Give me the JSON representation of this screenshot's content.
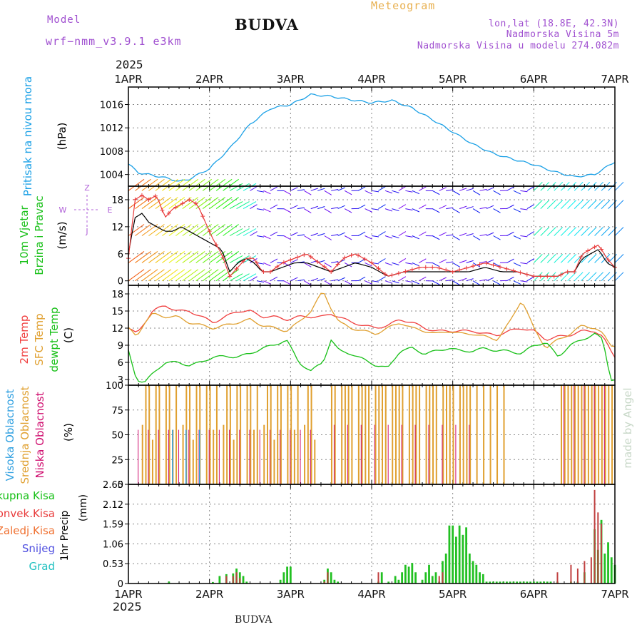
{
  "header": {
    "model_label": "Model",
    "model_name": "wrf−nmm_v3.9.1  e3km",
    "station": "BUDVA",
    "title": "Meteogram",
    "coords": "lon,lat (18.8E, 42.3N)",
    "elevation": "Nadmorska Visina 5m",
    "model_elevation": "Nadmorska Visina u modelu 274.082m",
    "year": "2025",
    "footer_station": "BUDVA",
    "watermark": "made by Angel"
  },
  "colors": {
    "pressure": "#1aa0e6",
    "wind_speed": "#e83a3a",
    "wind_gust": "#000000",
    "t2m": "#f04040",
    "sfc": "#e0a030",
    "dew": "#18c018",
    "cloud_high": "#30a0e0",
    "cloud_mid": "#e0a030",
    "cloud_low": "#d01070",
    "precip_total": "#22c022",
    "precip_conv": "#c04040",
    "grid": "#888888"
  },
  "chart_data": [
    {
      "id": "pressure",
      "type": "line",
      "ylabel_main": "Pritisak na nivou mora",
      "ylabel_unit": "(hPa)",
      "ylim": [
        1002,
        1019
      ],
      "yticks": [
        1004,
        1008,
        1012,
        1016
      ],
      "x_days": [
        0,
        0.125,
        0.25,
        0.5,
        0.625,
        0.75,
        1.0,
        1.25,
        1.5,
        1.75,
        2.0,
        2.25,
        2.5,
        2.75,
        3.0,
        3.25,
        3.5,
        3.75,
        4.0,
        4.25,
        4.5,
        4.75,
        5.0,
        5.25,
        5.5,
        5.75,
        6.0
      ],
      "values": [
        1005.8,
        1004.3,
        1004.0,
        1003.3,
        1002.8,
        1003.2,
        1005.0,
        1008.5,
        1012.6,
        1015.3,
        1016.0,
        1017.7,
        1017.4,
        1016.8,
        1016.3,
        1016.7,
        1015.4,
        1013.4,
        1011.3,
        1009.2,
        1007.6,
        1006.6,
        1005.7,
        1004.5,
        1003.6,
        1004.0,
        1006.2
      ]
    },
    {
      "id": "wind",
      "type": "line",
      "ylabel_main": "10m Vjetar",
      "ylabel_sub": "Brzina i Pravac",
      "ylabel_unit": "(m/s)",
      "compass": [
        "Z",
        "W",
        "E",
        "J"
      ],
      "ylim": [
        -1,
        21
      ],
      "yticks": [
        0,
        6,
        12,
        18
      ],
      "barb_rows": [
        0,
        4,
        10,
        16,
        20
      ],
      "x_days": [
        0,
        0.08,
        0.17,
        0.25,
        0.35,
        0.45,
        0.55,
        0.65,
        0.75,
        0.85,
        0.95,
        1.05,
        1.15,
        1.25,
        1.35,
        1.45,
        1.55,
        1.65,
        1.75,
        1.9,
        2.05,
        2.2,
        2.35,
        2.5,
        2.65,
        2.8,
        3.0,
        3.2,
        3.4,
        3.6,
        3.8,
        4.0,
        4.2,
        4.4,
        4.6,
        4.8,
        5.0,
        5.15,
        5.3,
        5.4,
        5.5,
        5.6,
        5.7,
        5.8,
        5.9,
        6.0
      ],
      "series": [
        {
          "name": "speed",
          "values": [
            5,
            18,
            19,
            18,
            19,
            14,
            16,
            17,
            18,
            17,
            13,
            9,
            6,
            1,
            3,
            5,
            5,
            2,
            2,
            4,
            5,
            6,
            4,
            2,
            5,
            6,
            4,
            1,
            2,
            3,
            3,
            2,
            3,
            4,
            3,
            2,
            1,
            1,
            1,
            2,
            2,
            6,
            7,
            8,
            5,
            3
          ]
        },
        {
          "name": "gust",
          "values": [
            6,
            14,
            15,
            13,
            12,
            11,
            11,
            12,
            11,
            10,
            9,
            8,
            7,
            2,
            4,
            5,
            4,
            2,
            2,
            3,
            4,
            4,
            3,
            2,
            3,
            4,
            3,
            1,
            2,
            2,
            2,
            2,
            2,
            3,
            2,
            2,
            1,
            1,
            1,
            2,
            2,
            5,
            6,
            7,
            4,
            3
          ]
        }
      ]
    },
    {
      "id": "temperature",
      "type": "line",
      "ylabel_main": "2m Temp",
      "ylabel_sub": "SFC Temp",
      "ylabel_sub2": "dewpt Temp",
      "ylabel_unit": "(C)",
      "ylim": [
        2,
        19.5
      ],
      "yticks": [
        3,
        6,
        9,
        12,
        15,
        18
      ],
      "x_days": [
        0,
        0.1,
        0.2,
        0.3,
        0.45,
        0.6,
        0.75,
        0.9,
        1.05,
        1.2,
        1.35,
        1.5,
        1.65,
        1.8,
        1.95,
        2.1,
        2.25,
        2.4,
        2.5,
        2.6,
        2.75,
        2.9,
        3.05,
        3.2,
        3.35,
        3.5,
        3.65,
        3.8,
        3.95,
        4.1,
        4.25,
        4.4,
        4.55,
        4.7,
        4.85,
        5.0,
        5.15,
        5.3,
        5.45,
        5.6,
        5.75,
        5.85,
        5.95,
        6.0
      ],
      "series": [
        {
          "name": "t2m",
          "values": [
            12,
            11,
            13,
            15,
            16,
            15,
            15,
            14,
            13,
            14,
            15,
            15,
            14,
            14,
            13.5,
            14,
            14,
            14,
            14.5,
            14,
            13,
            12.5,
            12,
            12.5,
            13.5,
            13,
            12,
            11.5,
            11.5,
            11.5,
            11.5,
            11,
            10.8,
            11.5,
            12,
            11.5,
            10,
            10.5,
            10.8,
            11.5,
            11.5,
            10.5,
            8,
            7
          ]
        },
        {
          "name": "sfc",
          "values": [
            12,
            10.5,
            13,
            14.5,
            14,
            14,
            13,
            12.5,
            12,
            12.5,
            13,
            13.5,
            12.5,
            12,
            11.5,
            13,
            15,
            18.5,
            15.5,
            13,
            12,
            11.5,
            11,
            12,
            13,
            12,
            11.5,
            11,
            11.5,
            11,
            11,
            10.5,
            10,
            13,
            17,
            12,
            8.5,
            10,
            11,
            12.5,
            12,
            11,
            9,
            9
          ]
        },
        {
          "name": "dewpt",
          "values": [
            8,
            3,
            2.5,
            4,
            6,
            6,
            5.5,
            6,
            7,
            7,
            7,
            7.5,
            8.5,
            9,
            10,
            6,
            4.5,
            6,
            10,
            8,
            7.5,
            6.5,
            5.5,
            5,
            8,
            8.5,
            7.5,
            8,
            8.5,
            8,
            8,
            8.5,
            8,
            8,
            7.5,
            9,
            9.5,
            7,
            9,
            10,
            11,
            10,
            3,
            3
          ]
        }
      ]
    },
    {
      "id": "clouds",
      "type": "bar",
      "ylabel_main": "Visoka Oblacnost",
      "ylabel_sub": "Srednja Oblacnost",
      "ylabel_sub2": "Niska Oblacnost",
      "ylabel_unit": "(%)",
      "ylim": [
        0,
        100
      ],
      "yticks": [
        0,
        25,
        50,
        75,
        100
      ]
    },
    {
      "id": "precip",
      "type": "bar",
      "ylabel_main": "1hr Precip",
      "ylabel_unit": "(mm)",
      "legend": [
        "Ukupna Kisa",
        "Konvek.Kisa",
        "Zaledj.Kisa",
        "Snijeg",
        "Grad"
      ],
      "ylim": [
        0,
        2.65
      ],
      "yticks": [
        0,
        0.53,
        1.06,
        1.59,
        2.12,
        2.65
      ],
      "ytick_labels": [
        "0",
        "0.53",
        "1.06",
        "1.59",
        "2.12",
        "2.65"
      ],
      "x_hours": [
        12,
        25,
        27,
        29,
        31,
        32,
        33,
        34,
        35,
        45,
        46,
        47,
        48,
        58,
        59,
        60,
        61,
        62,
        74,
        75,
        77,
        79,
        80,
        81,
        82,
        83,
        84,
        85,
        87,
        88,
        89,
        90,
        91,
        92,
        93,
        94,
        95,
        96,
        97,
        98,
        99,
        100,
        101,
        102,
        103,
        104,
        105,
        106,
        107,
        108,
        109,
        110,
        111,
        112,
        113,
        114,
        115,
        116,
        117,
        118,
        119,
        120,
        121,
        122,
        123,
        124,
        125,
        127,
        131,
        133,
        135,
        138,
        139,
        140,
        141,
        142,
        143,
        144
      ],
      "values": [
        0.05,
        0.04,
        0.2,
        0.25,
        0.27,
        0.4,
        0.3,
        0.2,
        0.05,
        0.1,
        0.3,
        0.45,
        0.45,
        0.1,
        0.4,
        0.3,
        0.1,
        0.05,
        0.05,
        0.3,
        0.05,
        0.2,
        0.1,
        0.3,
        0.5,
        0.45,
        0.55,
        0.3,
        0.1,
        0.3,
        0.5,
        0.2,
        0.3,
        0.05,
        0.6,
        0.8,
        1.55,
        1.55,
        1.25,
        1.55,
        1.3,
        1.5,
        0.8,
        0.6,
        0.5,
        0.3,
        0.25,
        0.05,
        0.05,
        0.05,
        0.05,
        0.05,
        0.05,
        0.05,
        0.05,
        0.05,
        0.05,
        0.05,
        0.05,
        0.05,
        0.05,
        0.05,
        0.05,
        0.05,
        0.05,
        0.05,
        0.05,
        0.05,
        0.05,
        0.05,
        0.3,
        1.45,
        0.9,
        1.7,
        0.8,
        1.1,
        0.7,
        0.5
      ],
      "conv_hours": [
        29,
        31,
        32,
        33,
        58,
        59,
        74,
        92,
        93,
        127,
        131,
        133,
        135,
        137,
        138,
        139,
        140
      ],
      "conv_values": [
        0.2,
        0.2,
        0.3,
        0.15,
        0.05,
        0.3,
        0.3,
        0.2,
        0.3,
        0.3,
        0.5,
        0.4,
        0.6,
        0.7,
        2.5,
        1.9,
        1.6
      ]
    }
  ],
  "x_axis": {
    "ticks": [
      "1APR",
      "2APR",
      "3APR",
      "4APR",
      "5APR",
      "6APR",
      "7APR"
    ],
    "year": "2025"
  }
}
